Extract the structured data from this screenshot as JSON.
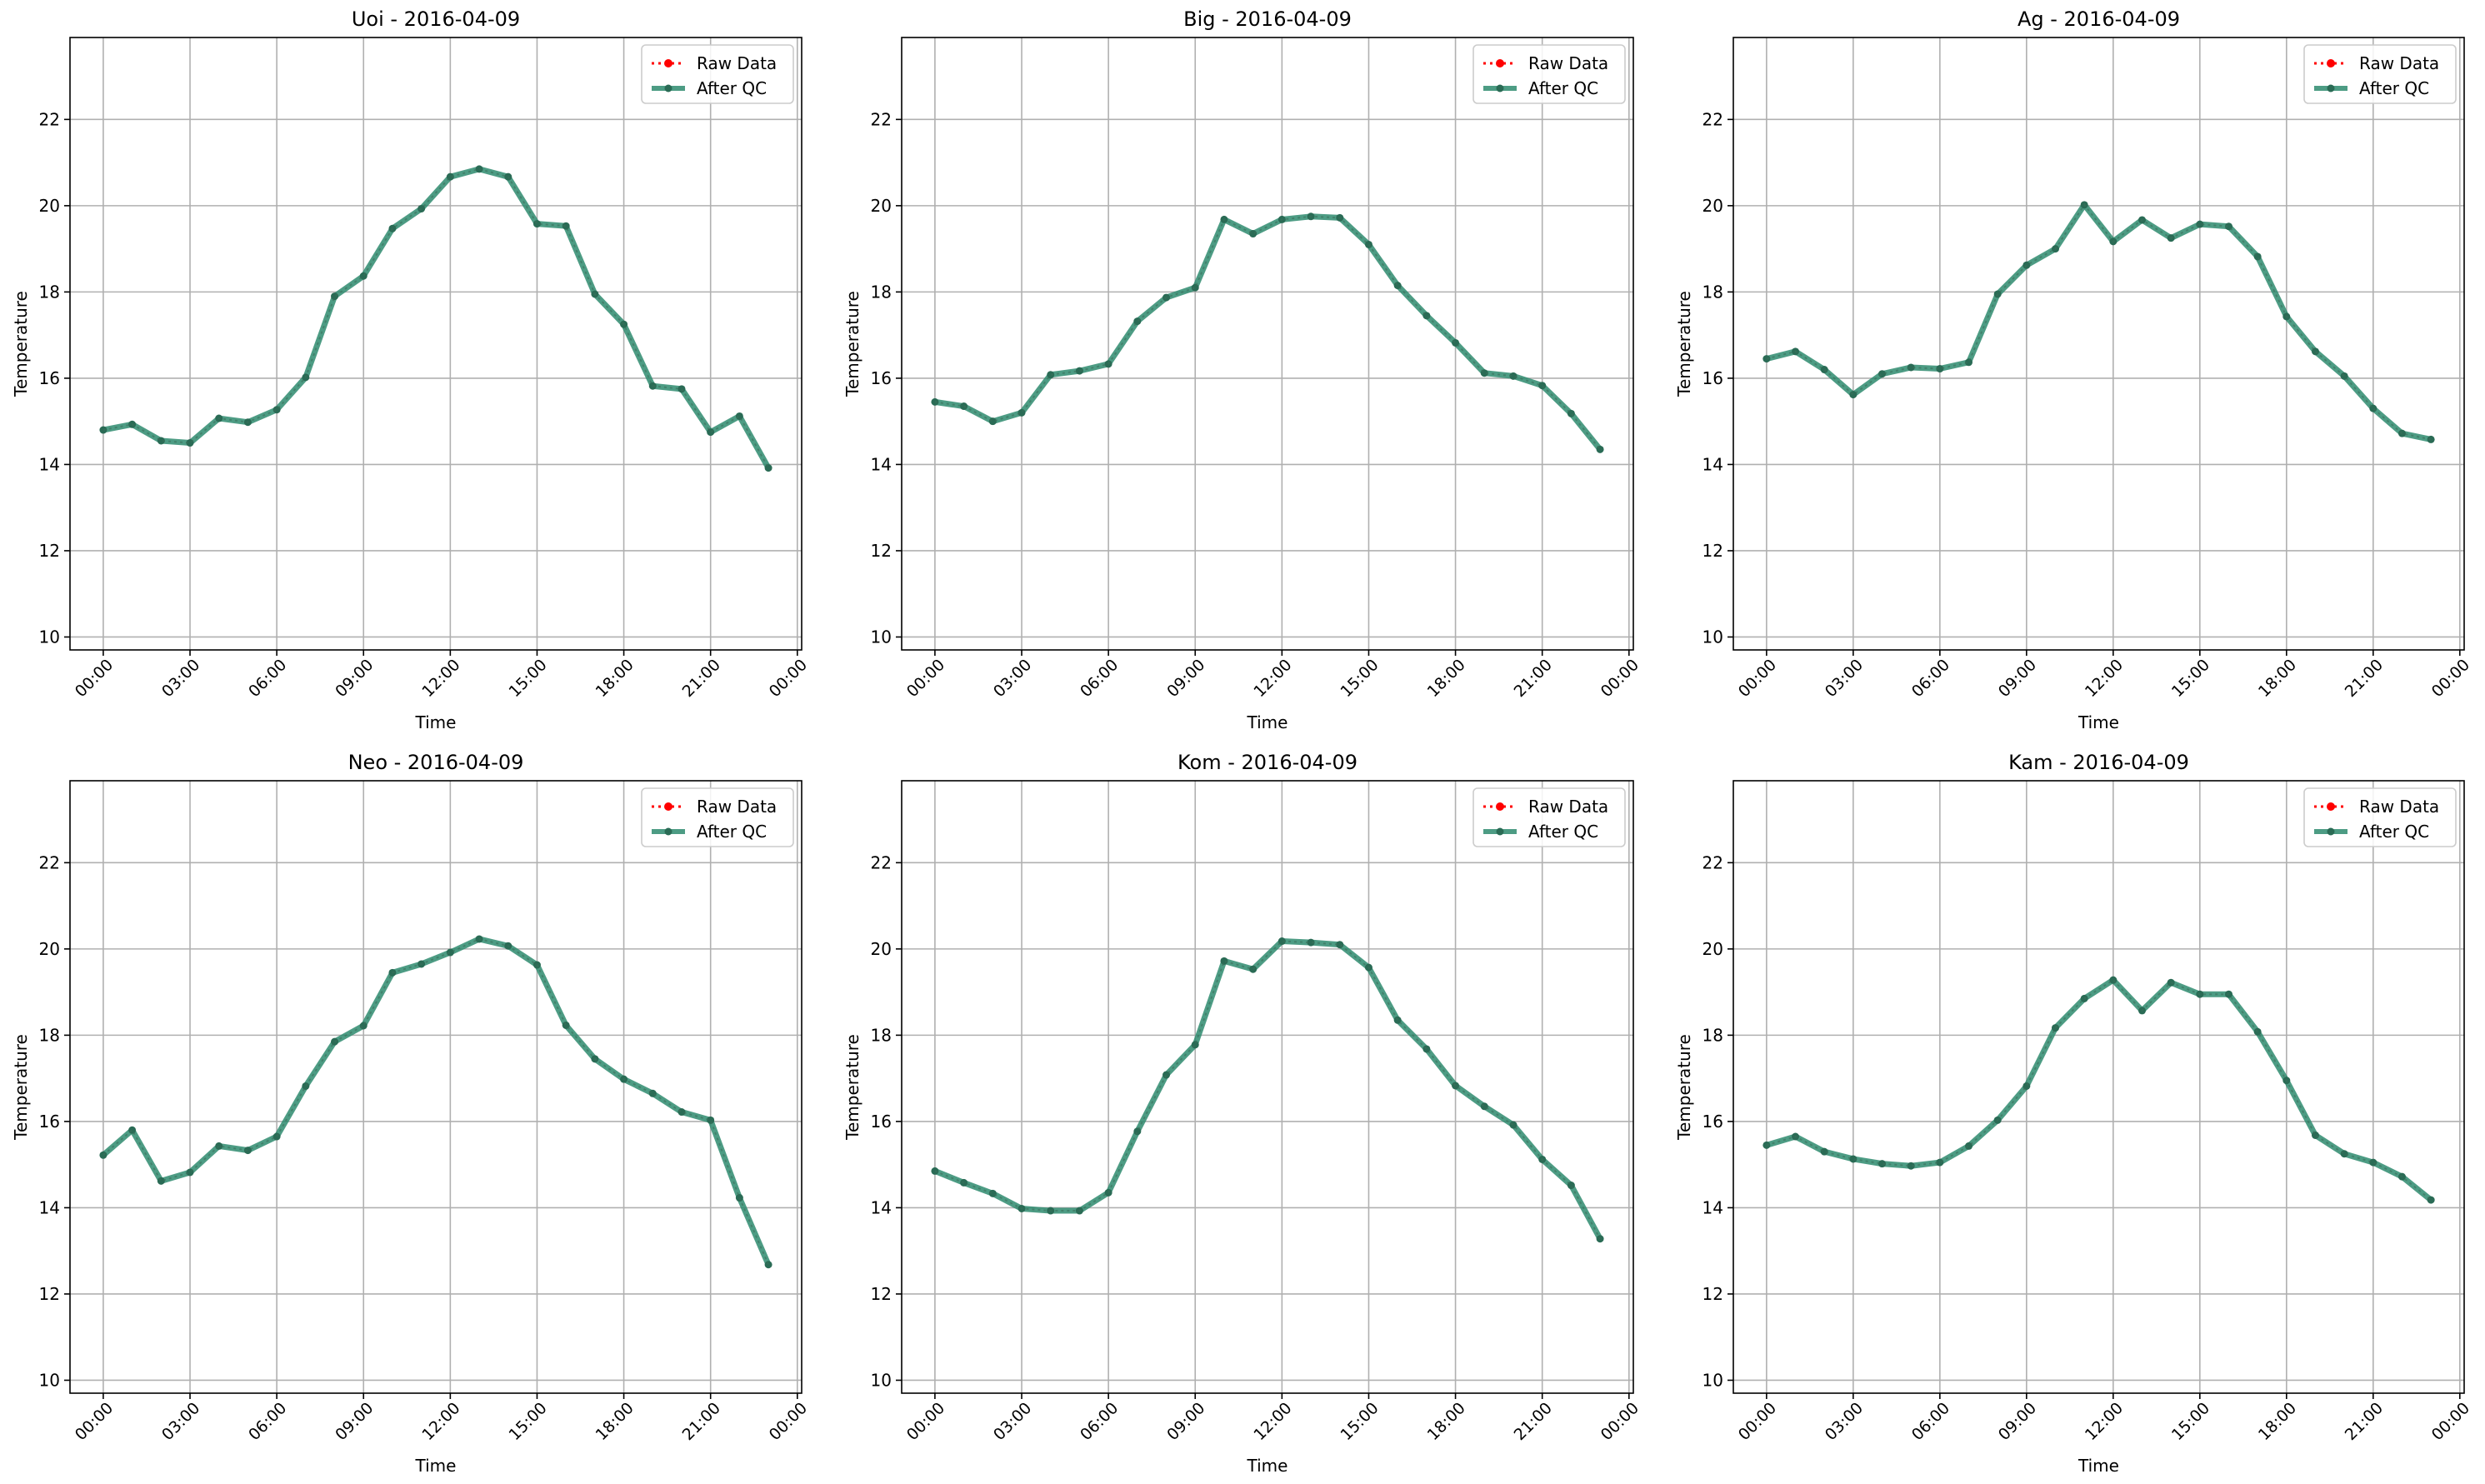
{
  "figure": {
    "background": "#ffffff",
    "grid_color": "#b0b0b0",
    "raw_color": "#ff0000",
    "qc_color": "#2e8b6e",
    "qc_marker_color": "#2a6b55"
  },
  "chart_data": [
    {
      "type": "line",
      "title": "Uoi - 2016-04-09",
      "xlabel": "Time",
      "ylabel": "Temperature",
      "x_ticks": [
        "00:00",
        "03:00",
        "06:00",
        "09:00",
        "12:00",
        "15:00",
        "18:00",
        "21:00",
        "00:00"
      ],
      "y_ticks": [
        "10",
        "12",
        "14",
        "16",
        "18",
        "20",
        "22"
      ],
      "ylim": [
        9.7,
        23.9
      ],
      "xlim_hours": [
        -1.15,
        24.15
      ],
      "grid": true,
      "legend": "top-right",
      "series": [
        {
          "name": "Raw Data",
          "values": [
            14.8,
            14.93,
            14.55,
            14.5,
            15.07,
            14.98,
            15.27,
            16.02,
            17.9,
            18.37,
            19.47,
            19.93,
            20.67,
            20.85,
            20.67,
            19.58,
            19.53,
            17.95,
            17.25,
            15.82,
            15.75,
            14.75,
            15.12,
            13.92
          ]
        },
        {
          "name": "After QC",
          "values": [
            14.8,
            14.93,
            14.55,
            14.5,
            15.07,
            14.98,
            15.27,
            16.02,
            17.9,
            18.37,
            19.47,
            19.93,
            20.67,
            20.85,
            20.67,
            19.58,
            19.53,
            17.95,
            17.25,
            15.82,
            15.75,
            14.75,
            15.12,
            13.92
          ]
        }
      ],
      "x_hours": [
        0,
        1,
        2,
        3,
        4,
        5,
        6,
        7,
        8,
        9,
        10,
        11,
        12,
        13,
        14,
        15,
        16,
        17,
        18,
        19,
        20,
        21,
        22,
        23
      ]
    },
    {
      "type": "line",
      "title": "Big - 2016-04-09",
      "xlabel": "Time",
      "ylabel": "Temperature",
      "x_ticks": [
        "00:00",
        "03:00",
        "06:00",
        "09:00",
        "12:00",
        "15:00",
        "18:00",
        "21:00",
        "00:00"
      ],
      "y_ticks": [
        "10",
        "12",
        "14",
        "16",
        "18",
        "20",
        "22"
      ],
      "ylim": [
        9.7,
        23.9
      ],
      "xlim_hours": [
        -1.15,
        24.15
      ],
      "grid": true,
      "legend": "top-right",
      "series": [
        {
          "name": "Raw Data",
          "values": [
            15.45,
            15.35,
            15.0,
            15.2,
            16.08,
            16.17,
            16.33,
            17.32,
            17.87,
            18.1,
            19.68,
            19.35,
            19.68,
            19.75,
            19.72,
            19.1,
            18.15,
            17.45,
            16.82,
            16.12,
            16.05,
            15.83,
            15.18,
            14.35
          ]
        },
        {
          "name": "After QC",
          "values": [
            15.45,
            15.35,
            15.0,
            15.2,
            16.08,
            16.17,
            16.33,
            17.32,
            17.87,
            18.1,
            19.68,
            19.35,
            19.68,
            19.75,
            19.72,
            19.1,
            18.15,
            17.45,
            16.82,
            16.12,
            16.05,
            15.83,
            15.18,
            14.35
          ]
        }
      ],
      "x_hours": [
        0,
        1,
        2,
        3,
        4,
        5,
        6,
        7,
        8,
        9,
        10,
        11,
        12,
        13,
        14,
        15,
        16,
        17,
        18,
        19,
        20,
        21,
        22,
        23
      ]
    },
    {
      "type": "line",
      "title": "Ag - 2016-04-09",
      "xlabel": "Time",
      "ylabel": "Temperature",
      "x_ticks": [
        "00:00",
        "03:00",
        "06:00",
        "09:00",
        "12:00",
        "15:00",
        "18:00",
        "21:00",
        "00:00"
      ],
      "y_ticks": [
        "10",
        "12",
        "14",
        "16",
        "18",
        "20",
        "22"
      ],
      "ylim": [
        9.7,
        23.9
      ],
      "xlim_hours": [
        -1.15,
        24.15
      ],
      "grid": true,
      "legend": "top-right",
      "series": [
        {
          "name": "Raw Data",
          "values": [
            16.45,
            16.62,
            16.2,
            15.62,
            16.1,
            16.25,
            16.22,
            16.37,
            17.95,
            18.62,
            19.0,
            20.02,
            19.17,
            19.67,
            19.25,
            19.57,
            19.52,
            18.82,
            17.43,
            16.62,
            16.05,
            15.3,
            14.72,
            14.58
          ]
        },
        {
          "name": "After QC",
          "values": [
            16.45,
            16.62,
            16.2,
            15.62,
            16.1,
            16.25,
            16.22,
            16.37,
            17.95,
            18.62,
            19.0,
            20.02,
            19.17,
            19.67,
            19.25,
            19.57,
            19.52,
            18.82,
            17.43,
            16.62,
            16.05,
            15.3,
            14.72,
            14.58
          ]
        }
      ],
      "x_hours": [
        0,
        1,
        2,
        3,
        4,
        5,
        6,
        7,
        8,
        9,
        10,
        11,
        12,
        13,
        14,
        15,
        16,
        17,
        18,
        19,
        20,
        21,
        22,
        23
      ]
    },
    {
      "type": "line",
      "title": "Neo - 2016-04-09",
      "xlabel": "Time",
      "ylabel": "Temperature",
      "x_ticks": [
        "00:00",
        "03:00",
        "06:00",
        "09:00",
        "12:00",
        "15:00",
        "18:00",
        "21:00",
        "00:00"
      ],
      "y_ticks": [
        "10",
        "12",
        "14",
        "16",
        "18",
        "20",
        "22"
      ],
      "ylim": [
        9.7,
        23.9
      ],
      "xlim_hours": [
        -1.15,
        24.15
      ],
      "grid": true,
      "legend": "top-right",
      "series": [
        {
          "name": "Raw Data",
          "values": [
            15.22,
            15.8,
            14.62,
            14.82,
            15.43,
            15.33,
            15.65,
            16.82,
            17.85,
            18.22,
            19.45,
            19.65,
            19.92,
            20.23,
            20.07,
            19.63,
            18.23,
            17.45,
            16.98,
            16.65,
            16.22,
            16.03,
            14.23,
            12.68
          ]
        },
        {
          "name": "After QC",
          "values": [
            15.22,
            15.8,
            14.62,
            14.82,
            15.43,
            15.33,
            15.65,
            16.82,
            17.85,
            18.22,
            19.45,
            19.65,
            19.92,
            20.23,
            20.07,
            19.63,
            18.23,
            17.45,
            16.98,
            16.65,
            16.22,
            16.03,
            14.23,
            12.68
          ]
        }
      ],
      "x_hours": [
        0,
        1,
        2,
        3,
        4,
        5,
        6,
        7,
        8,
        9,
        10,
        11,
        12,
        13,
        14,
        15,
        16,
        17,
        18,
        19,
        20,
        21,
        22,
        23
      ]
    },
    {
      "type": "line",
      "title": "Kom - 2016-04-09",
      "xlabel": "Time",
      "ylabel": "Temperature",
      "x_ticks": [
        "00:00",
        "03:00",
        "06:00",
        "09:00",
        "12:00",
        "15:00",
        "18:00",
        "21:00",
        "00:00"
      ],
      "y_ticks": [
        "10",
        "12",
        "14",
        "16",
        "18",
        "20",
        "22"
      ],
      "ylim": [
        9.7,
        23.9
      ],
      "xlim_hours": [
        -1.15,
        24.15
      ],
      "grid": true,
      "legend": "top-right",
      "series": [
        {
          "name": "Raw Data",
          "values": [
            14.85,
            14.58,
            14.33,
            13.98,
            13.93,
            13.93,
            14.35,
            15.77,
            17.08,
            17.78,
            19.72,
            19.53,
            20.18,
            20.15,
            20.1,
            19.57,
            18.35,
            17.68,
            16.83,
            16.35,
            15.92,
            15.12,
            14.52,
            13.28
          ]
        },
        {
          "name": "After QC",
          "values": [
            14.85,
            14.58,
            14.33,
            13.98,
            13.93,
            13.93,
            14.35,
            15.77,
            17.08,
            17.78,
            19.72,
            19.53,
            20.18,
            20.15,
            20.1,
            19.57,
            18.35,
            17.68,
            16.83,
            16.35,
            15.92,
            15.12,
            14.52,
            13.28
          ]
        }
      ],
      "x_hours": [
        0,
        1,
        2,
        3,
        4,
        5,
        6,
        7,
        8,
        9,
        10,
        11,
        12,
        13,
        14,
        15,
        16,
        17,
        18,
        19,
        20,
        21,
        22,
        23
      ]
    },
    {
      "type": "line",
      "title": "Kam - 2016-04-09",
      "xlabel": "Time",
      "ylabel": "Temperature",
      "x_ticks": [
        "00:00",
        "03:00",
        "06:00",
        "09:00",
        "12:00",
        "15:00",
        "18:00",
        "21:00",
        "00:00"
      ],
      "y_ticks": [
        "10",
        "12",
        "14",
        "16",
        "18",
        "20",
        "22"
      ],
      "ylim": [
        9.7,
        23.9
      ],
      "xlim_hours": [
        -1.15,
        24.15
      ],
      "grid": true,
      "legend": "top-right",
      "series": [
        {
          "name": "Raw Data",
          "values": [
            15.45,
            15.65,
            15.3,
            15.13,
            15.02,
            14.97,
            15.05,
            15.43,
            16.03,
            16.82,
            18.17,
            18.85,
            19.28,
            18.57,
            19.22,
            18.95,
            18.95,
            18.08,
            16.95,
            15.68,
            15.25,
            15.05,
            14.72,
            14.18
          ]
        },
        {
          "name": "After QC",
          "values": [
            15.45,
            15.65,
            15.3,
            15.13,
            15.02,
            14.97,
            15.05,
            15.43,
            16.03,
            16.82,
            18.17,
            18.85,
            19.28,
            18.57,
            19.22,
            18.95,
            18.95,
            18.08,
            16.95,
            15.68,
            15.25,
            15.05,
            14.72,
            14.18
          ]
        }
      ],
      "x_hours": [
        0,
        1,
        2,
        3,
        4,
        5,
        6,
        7,
        8,
        9,
        10,
        11,
        12,
        13,
        14,
        15,
        16,
        17,
        18,
        19,
        20,
        21,
        22,
        23
      ]
    }
  ]
}
